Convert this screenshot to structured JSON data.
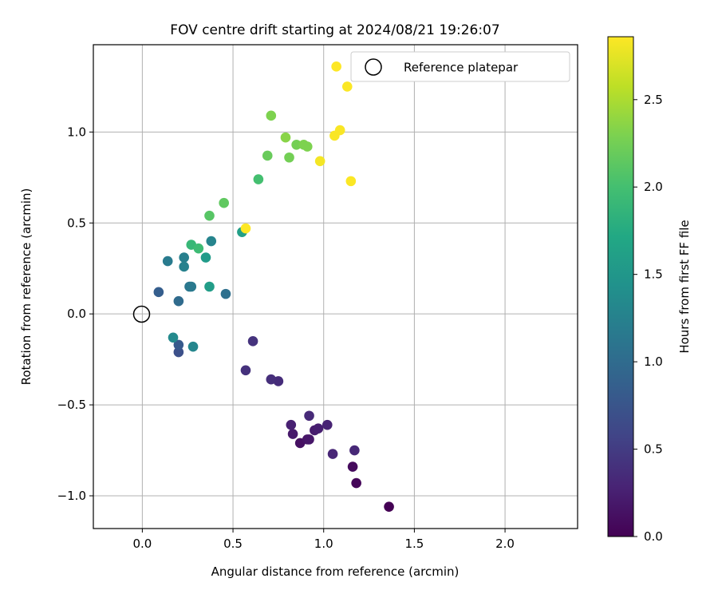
{
  "chart_data": {
    "type": "scatter",
    "title": "FOV centre drift starting at 2024/08/21 19:26:07",
    "xlabel": "Angular distance from reference (arcmin)",
    "ylabel": "Rotation from reference (arcmin)",
    "xlim": [
      -0.27,
      2.4
    ],
    "ylim": [
      -1.18,
      1.48
    ],
    "xticks": [
      0.0,
      0.5,
      1.0,
      1.5,
      2.0
    ],
    "xtick_labels": [
      "0.0",
      "0.5",
      "1.0",
      "1.5",
      "2.0"
    ],
    "yticks": [
      -1.0,
      -0.5,
      0.0,
      0.5,
      1.0
    ],
    "ytick_labels": [
      "−1.0",
      "−0.5",
      "0.0",
      "0.5",
      "1.0"
    ],
    "grid": true,
    "colormap": "viridis",
    "colorbar": {
      "label": "Hours from first FF file",
      "min": 0.0,
      "max": 2.86,
      "ticks": [
        0.0,
        0.5,
        1.0,
        1.5,
        2.0,
        2.5
      ],
      "tick_labels": [
        "0.0",
        "0.5",
        "1.0",
        "1.5",
        "2.0",
        "2.5"
      ]
    },
    "legend": {
      "placement": "top-right",
      "entries": [
        "Reference platepar"
      ]
    },
    "reference_point": {
      "x": 0.0,
      "y": 0.0,
      "label": "Reference platepar"
    },
    "points": [
      {
        "x": 1.36,
        "y": -1.06,
        "c": 0.0
      },
      {
        "x": 1.18,
        "y": -0.93,
        "c": 0.04
      },
      {
        "x": 1.16,
        "y": -0.84,
        "c": 0.08
      },
      {
        "x": 0.87,
        "y": -0.71,
        "c": 0.12
      },
      {
        "x": 0.91,
        "y": -0.69,
        "c": 0.16
      },
      {
        "x": 0.92,
        "y": -0.69,
        "c": 0.18
      },
      {
        "x": 0.83,
        "y": -0.66,
        "c": 0.2
      },
      {
        "x": 0.95,
        "y": -0.64,
        "c": 0.22
      },
      {
        "x": 0.97,
        "y": -0.63,
        "c": 0.24
      },
      {
        "x": 0.82,
        "y": -0.61,
        "c": 0.26
      },
      {
        "x": 1.02,
        "y": -0.61,
        "c": 0.28
      },
      {
        "x": 1.05,
        "y": -0.77,
        "c": 0.3
      },
      {
        "x": 1.17,
        "y": -0.75,
        "c": 0.32
      },
      {
        "x": 0.92,
        "y": -0.56,
        "c": 0.34
      },
      {
        "x": 0.75,
        "y": -0.37,
        "c": 0.36
      },
      {
        "x": 0.71,
        "y": -0.36,
        "c": 0.38
      },
      {
        "x": 0.57,
        "y": -0.31,
        "c": 0.4
      },
      {
        "x": 0.61,
        "y": -0.15,
        "c": 0.42
      },
      {
        "x": 0.2,
        "y": -0.21,
        "c": 0.7
      },
      {
        "x": 0.2,
        "y": -0.17,
        "c": 0.8
      },
      {
        "x": 0.09,
        "y": 0.12,
        "c": 0.85
      },
      {
        "x": 0.2,
        "y": 0.07,
        "c": 1.0
      },
      {
        "x": 0.46,
        "y": 0.11,
        "c": 1.05
      },
      {
        "x": 0.26,
        "y": 0.15,
        "c": 1.12
      },
      {
        "x": 0.27,
        "y": 0.15,
        "c": 1.15
      },
      {
        "x": 0.14,
        "y": 0.29,
        "c": 1.18
      },
      {
        "x": 0.23,
        "y": 0.31,
        "c": 1.22
      },
      {
        "x": 0.23,
        "y": 0.26,
        "c": 1.25
      },
      {
        "x": 0.38,
        "y": 0.4,
        "c": 1.28
      },
      {
        "x": 0.28,
        "y": -0.18,
        "c": 1.3
      },
      {
        "x": 0.17,
        "y": -0.13,
        "c": 1.35
      },
      {
        "x": 0.35,
        "y": 0.31,
        "c": 1.55
      },
      {
        "x": 0.37,
        "y": 0.15,
        "c": 1.58
      },
      {
        "x": 0.55,
        "y": 0.45,
        "c": 1.6
      },
      {
        "x": 0.27,
        "y": 0.38,
        "c": 1.9
      },
      {
        "x": 0.31,
        "y": 0.36,
        "c": 1.95
      },
      {
        "x": 0.64,
        "y": 0.74,
        "c": 2.0
      },
      {
        "x": 0.37,
        "y": 0.54,
        "c": 2.1
      },
      {
        "x": 0.45,
        "y": 0.61,
        "c": 2.15
      },
      {
        "x": 0.69,
        "y": 0.87,
        "c": 2.2
      },
      {
        "x": 0.81,
        "y": 0.86,
        "c": 2.25
      },
      {
        "x": 0.85,
        "y": 0.93,
        "c": 2.25
      },
      {
        "x": 0.89,
        "y": 0.93,
        "c": 2.3
      },
      {
        "x": 0.91,
        "y": 0.92,
        "c": 2.3
      },
      {
        "x": 0.79,
        "y": 0.97,
        "c": 2.35
      },
      {
        "x": 0.71,
        "y": 1.09,
        "c": 2.3
      },
      {
        "x": 0.98,
        "y": 0.84,
        "c": 2.82
      },
      {
        "x": 1.06,
        "y": 0.98,
        "c": 2.84
      },
      {
        "x": 1.09,
        "y": 1.01,
        "c": 2.84
      },
      {
        "x": 1.15,
        "y": 0.73,
        "c": 2.85
      },
      {
        "x": 1.13,
        "y": 1.25,
        "c": 2.85
      },
      {
        "x": 1.07,
        "y": 1.36,
        "c": 2.86
      },
      {
        "x": 0.57,
        "y": 0.47,
        "c": 2.86
      }
    ]
  }
}
